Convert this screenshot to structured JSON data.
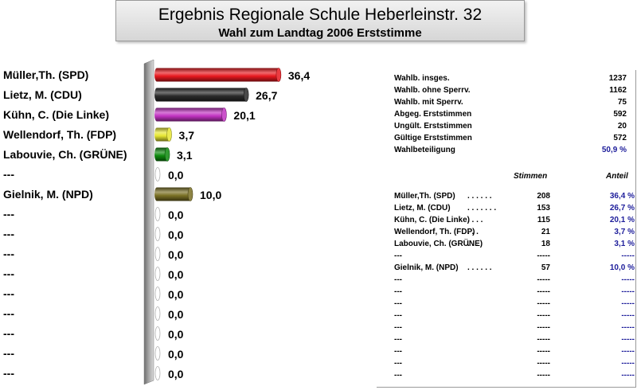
{
  "header": {
    "title": "Ergebnis Regionale Schule Heberleinstr. 32",
    "subtitle": "Wahl zum Landtag 2006 Erststimme"
  },
  "chart_data": {
    "type": "bar",
    "orientation": "horizontal",
    "categories": [
      "Müller,Th. (SPD)",
      "Lietz, M. (CDU)",
      "Kühn, C. (Die Linke)",
      "Wellendorf, Th. (FDP)",
      "Labouvie, Ch. (GRÜNE)",
      "---",
      "Gielnik, M. (NPD)",
      "---",
      "---",
      "---",
      "---",
      "---",
      "---",
      "---",
      "---",
      "---"
    ],
    "values": [
      36.4,
      26.7,
      20.1,
      3.7,
      3.1,
      0.0,
      10.0,
      0.0,
      0.0,
      0.0,
      0.0,
      0.0,
      0.0,
      0.0,
      0.0,
      0.0
    ],
    "value_labels": [
      "36,4",
      "26,7",
      "20,1",
      "3,7",
      "3,1",
      "0,0",
      "10,0",
      "0,0",
      "0,0",
      "0,0",
      "0,0",
      "0,0",
      "0,0",
      "0,0",
      "0,0",
      "0,0"
    ],
    "colors": [
      "#e8191f",
      "#2a2a2a",
      "#c233c2",
      "#e6e632",
      "#0e8a0e",
      "#cccccc",
      "#7a7024",
      "#cccccc",
      "#cccccc",
      "#cccccc",
      "#cccccc",
      "#cccccc",
      "#cccccc",
      "#cccccc",
      "#cccccc",
      "#cccccc"
    ],
    "xlim": [
      0,
      40
    ],
    "grid": false,
    "legend": "none"
  },
  "stats": [
    {
      "label": "Wahlb. insges.",
      "value": "1237"
    },
    {
      "label": "Wahlb. ohne Sperrv.",
      "value": "1162"
    },
    {
      "label": "Wahlb. mit Sperrv.",
      "value": "75"
    },
    {
      "label": "Abgeg. Erststimmen",
      "value": "592"
    },
    {
      "label": "Ungült. Erststimmen",
      "value": "20"
    },
    {
      "label": "Gültige Erststimmen",
      "value": "572"
    },
    {
      "label": "Wahlbeteiligung",
      "value": "50,9 %"
    }
  ],
  "results_header": {
    "stimmen": "Stimmen",
    "anteil": "Anteil"
  },
  "results": [
    {
      "name": "Müller,Th. (SPD)",
      "dots": ". . . . . .",
      "stimmen": "208",
      "anteil": "36,4 %"
    },
    {
      "name": "Lietz, M. (CDU)",
      "dots": ". . . . . . .",
      "stimmen": "153",
      "anteil": "26,7 %"
    },
    {
      "name": "Kühn, C. (Die Linke)",
      "dots": ". . . .",
      "stimmen": "115",
      "anteil": "20,1 %"
    },
    {
      "name": "Wellendorf, Th. (FDP)",
      "dots": ". . .",
      "stimmen": "21",
      "anteil": "3,7 %"
    },
    {
      "name": "Labouvie, Ch. (GRÜNE)",
      "dots": ". . .",
      "stimmen": "18",
      "anteil": "3,1 %"
    },
    {
      "name": "---",
      "dots": "",
      "stimmen": "-----",
      "anteil": "-----"
    },
    {
      "name": "Gielnik, M. (NPD)",
      "dots": ". . . . . .",
      "stimmen": "57",
      "anteil": "10,0 %"
    },
    {
      "name": "---",
      "dots": "",
      "stimmen": "-----",
      "anteil": "-----"
    },
    {
      "name": "---",
      "dots": "",
      "stimmen": "-----",
      "anteil": "-----"
    },
    {
      "name": "---",
      "dots": "",
      "stimmen": "-----",
      "anteil": "-----"
    },
    {
      "name": "---",
      "dots": "",
      "stimmen": "-----",
      "anteil": "-----"
    },
    {
      "name": "---",
      "dots": "",
      "stimmen": "-----",
      "anteil": "-----"
    },
    {
      "name": "---",
      "dots": "",
      "stimmen": "-----",
      "anteil": "-----"
    },
    {
      "name": "---",
      "dots": "",
      "stimmen": "-----",
      "anteil": "-----"
    },
    {
      "name": "---",
      "dots": "",
      "stimmen": "-----",
      "anteil": "-----"
    },
    {
      "name": "---",
      "dots": "",
      "stimmen": "-----",
      "anteil": "-----"
    }
  ]
}
